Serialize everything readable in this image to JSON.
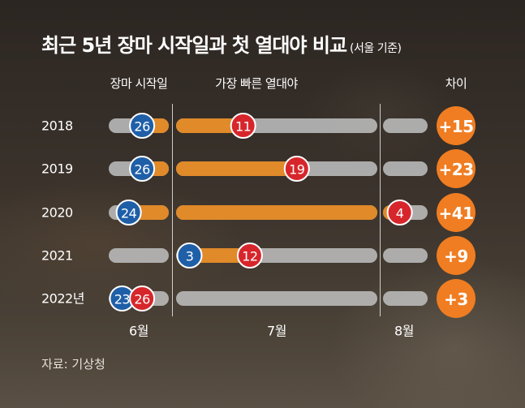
{
  "title": "최근 5년 장마 시작일과 첫 열대야 비교",
  "title_note": "(서울 기준)",
  "source": "자료: 기상청",
  "colors": {
    "monsoon_badge": "#1f5fa8",
    "tropical_badge": "#d7262b",
    "diff_badge": "#f07d21",
    "bar_fill": "#e08a2a",
    "track": "#b9b9b9",
    "text": "#ffffff"
  },
  "chart_data": {
    "type": "bar",
    "title": "최근 5년 장마 시작일과 첫 열대야 비교",
    "subtitle": "(서울 기준)",
    "column_labels": {
      "monsoon": "장마 시작일",
      "tropical": "가장 빠른 열대야",
      "diff": "차이"
    },
    "months": [
      "6월",
      "7월",
      "8월"
    ],
    "categories": [
      "2018",
      "2019",
      "2020",
      "2021",
      "2022년"
    ],
    "series": [
      {
        "name": "장마 시작일",
        "month": [
          6,
          6,
          6,
          7,
          6
        ],
        "day": [
          26,
          26,
          24,
          3,
          23
        ],
        "labels": [
          "26",
          "26",
          "24",
          "3",
          "23"
        ]
      },
      {
        "name": "가장 빠른 열대야",
        "month": [
          7,
          7,
          8,
          7,
          6
        ],
        "day": [
          11,
          19,
          4,
          12,
          26
        ],
        "labels": [
          "11",
          "19",
          "4",
          "12",
          "26"
        ]
      },
      {
        "name": "차이",
        "values": [
          15,
          23,
          41,
          9,
          3
        ],
        "labels": [
          "+15",
          "+23",
          "+41",
          "+9",
          "+3"
        ]
      }
    ]
  }
}
